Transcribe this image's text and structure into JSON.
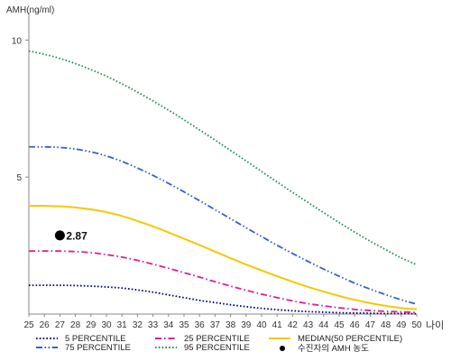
{
  "chart_data": {
    "type": "line",
    "ylabel": "AMH(ng/ml)",
    "xlabel": "나이",
    "x": [
      25,
      26,
      27,
      28,
      29,
      30,
      31,
      32,
      33,
      34,
      35,
      36,
      37,
      38,
      39,
      40,
      41,
      42,
      43,
      44,
      45,
      46,
      47,
      48,
      49,
      50
    ],
    "xlim": [
      25,
      50
    ],
    "ylim": [
      0,
      11
    ],
    "yticks": [
      5,
      10
    ],
    "grid": false,
    "series": [
      {
        "name": "5 PERCENTILE",
        "color": "#000080",
        "dash": "dotted",
        "values": [
          1.05,
          1.05,
          1.05,
          1.04,
          1.02,
          0.99,
          0.95,
          0.88,
          0.8,
          0.7,
          0.6,
          0.5,
          0.42,
          0.34,
          0.27,
          0.21,
          0.16,
          0.12,
          0.09,
          0.07,
          0.05,
          0.04,
          0.03,
          0.02,
          0.02,
          0.01
        ]
      },
      {
        "name": "25 PERCENTILE",
        "color": "#e0208c",
        "dash": "dashdot",
        "values": [
          2.3,
          2.3,
          2.3,
          2.28,
          2.24,
          2.17,
          2.08,
          1.96,
          1.82,
          1.67,
          1.51,
          1.35,
          1.18,
          1.02,
          0.87,
          0.73,
          0.6,
          0.48,
          0.38,
          0.3,
          0.23,
          0.17,
          0.13,
          0.1,
          0.08,
          0.06
        ]
      },
      {
        "name": "MEDIAN(50 PERCENTILE)",
        "color": "#f5c800",
        "dash": "solid",
        "values": [
          3.95,
          3.95,
          3.93,
          3.89,
          3.82,
          3.72,
          3.58,
          3.4,
          3.2,
          2.98,
          2.75,
          2.52,
          2.28,
          2.04,
          1.81,
          1.59,
          1.38,
          1.18,
          0.99,
          0.82,
          0.66,
          0.52,
          0.4,
          0.3,
          0.22,
          0.18
        ]
      },
      {
        "name": "75 PERCENTILE",
        "color": "#3a5fcd",
        "dash": "dashdotdot",
        "values": [
          6.1,
          6.1,
          6.08,
          6.02,
          5.92,
          5.77,
          5.57,
          5.33,
          5.06,
          4.77,
          4.46,
          4.14,
          3.81,
          3.48,
          3.15,
          2.83,
          2.51,
          2.21,
          1.92,
          1.64,
          1.38,
          1.13,
          0.91,
          0.71,
          0.52,
          0.36
        ]
      },
      {
        "name": "95 PERCENTILE",
        "color": "#2e8b57",
        "dash": "dotted",
        "values": [
          9.6,
          9.48,
          9.33,
          9.14,
          8.92,
          8.68,
          8.4,
          8.1,
          7.78,
          7.44,
          7.09,
          6.72,
          6.35,
          5.97,
          5.59,
          5.2,
          4.82,
          4.44,
          4.07,
          3.7,
          3.34,
          2.99,
          2.66,
          2.35,
          2.05,
          1.8
        ]
      }
    ],
    "marker": {
      "name": "수진자의 AMH 농도",
      "x": 27,
      "y": 2.87,
      "label": "2.87",
      "color": "#000000"
    },
    "legend_position": "bottom"
  }
}
